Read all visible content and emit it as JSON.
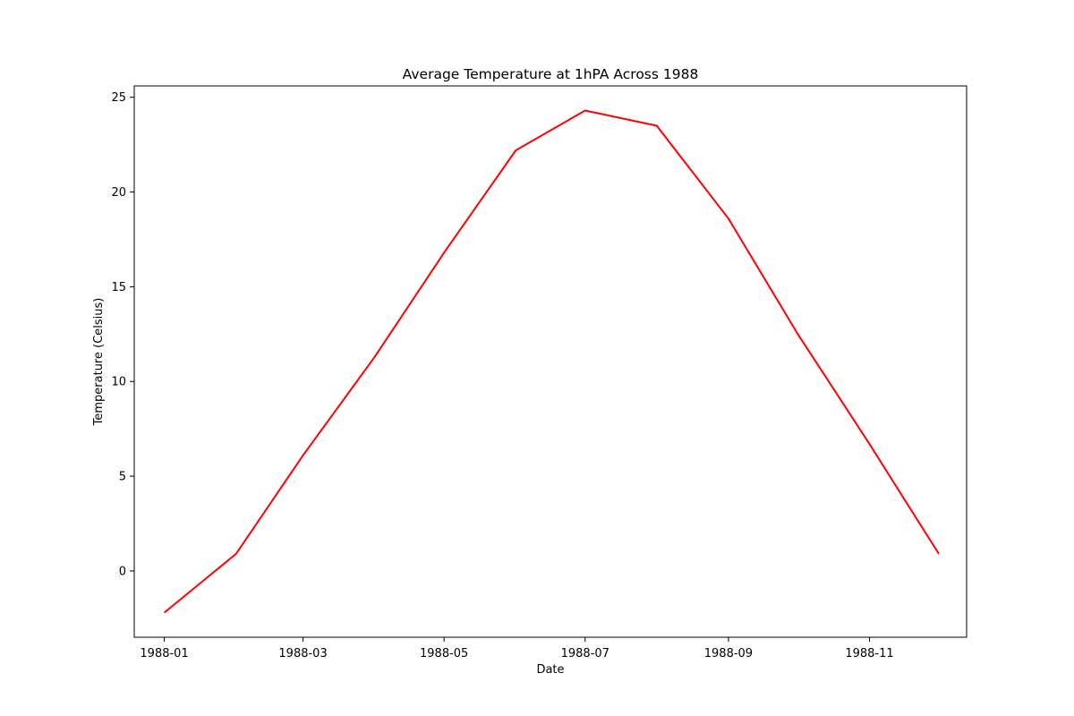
{
  "chart_data": {
    "type": "line",
    "title": "Average Temperature at 1hPA Across 1988",
    "xlabel": "Date",
    "ylabel": "Temperature (Celsius)",
    "x": [
      "1988-01-01",
      "1988-02-01",
      "1988-03-01",
      "1988-04-01",
      "1988-05-01",
      "1988-06-01",
      "1988-07-01",
      "1988-08-01",
      "1988-09-01",
      "1988-10-01",
      "1988-11-01",
      "1988-12-01"
    ],
    "series": [
      {
        "values": [
          -2.2,
          0.9,
          6.1,
          11.3,
          16.8,
          22.2,
          24.3,
          23.5,
          18.6,
          12.5,
          6.7,
          0.9
        ],
        "color": "#ff0000"
      }
    ],
    "xlim": [
      "1987-12-19",
      "1988-12-13"
    ],
    "ylim": [
      -3.5,
      25.6
    ],
    "xticks": [
      "1988-01-01",
      "1988-03-01",
      "1988-05-01",
      "1988-07-01",
      "1988-09-01",
      "1988-11-01"
    ],
    "xtick_labels": [
      "1988-01",
      "1988-03",
      "1988-05",
      "1988-07",
      "1988-09",
      "1988-11"
    ],
    "yticks": [
      0,
      5,
      10,
      15,
      20,
      25
    ],
    "ytick_labels": [
      "0",
      "5",
      "10",
      "15",
      "20",
      "25"
    ],
    "grid": false,
    "legend": "none"
  }
}
